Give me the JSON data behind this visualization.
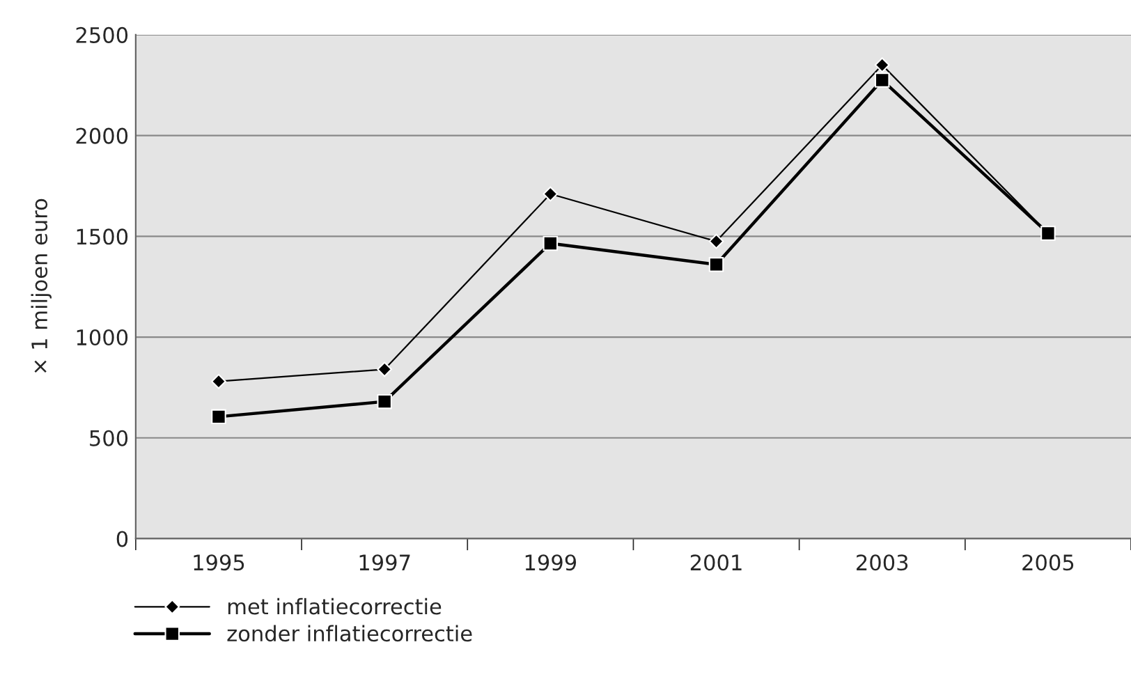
{
  "chart_data": {
    "type": "line",
    "ylabel": "× 1 miljoen euro",
    "categories": [
      "1995",
      "1997",
      "1999",
      "2001",
      "2003",
      "2005"
    ],
    "series": [
      {
        "name": "met inflatiecorrectie",
        "color": "#000000",
        "marker": "diamond",
        "values": [
          780,
          840,
          1710,
          1475,
          2350,
          1515
        ]
      },
      {
        "name": "zonder inflatiecorrectie",
        "color": "#000000",
        "marker": "square",
        "values": [
          605,
          680,
          1465,
          1360,
          2275,
          1515
        ]
      }
    ],
    "ylim": [
      0,
      2500
    ],
    "yticks": [
      0,
      500,
      1000,
      1500,
      2000,
      2500
    ],
    "grid": "y",
    "legend": "bottom left"
  }
}
